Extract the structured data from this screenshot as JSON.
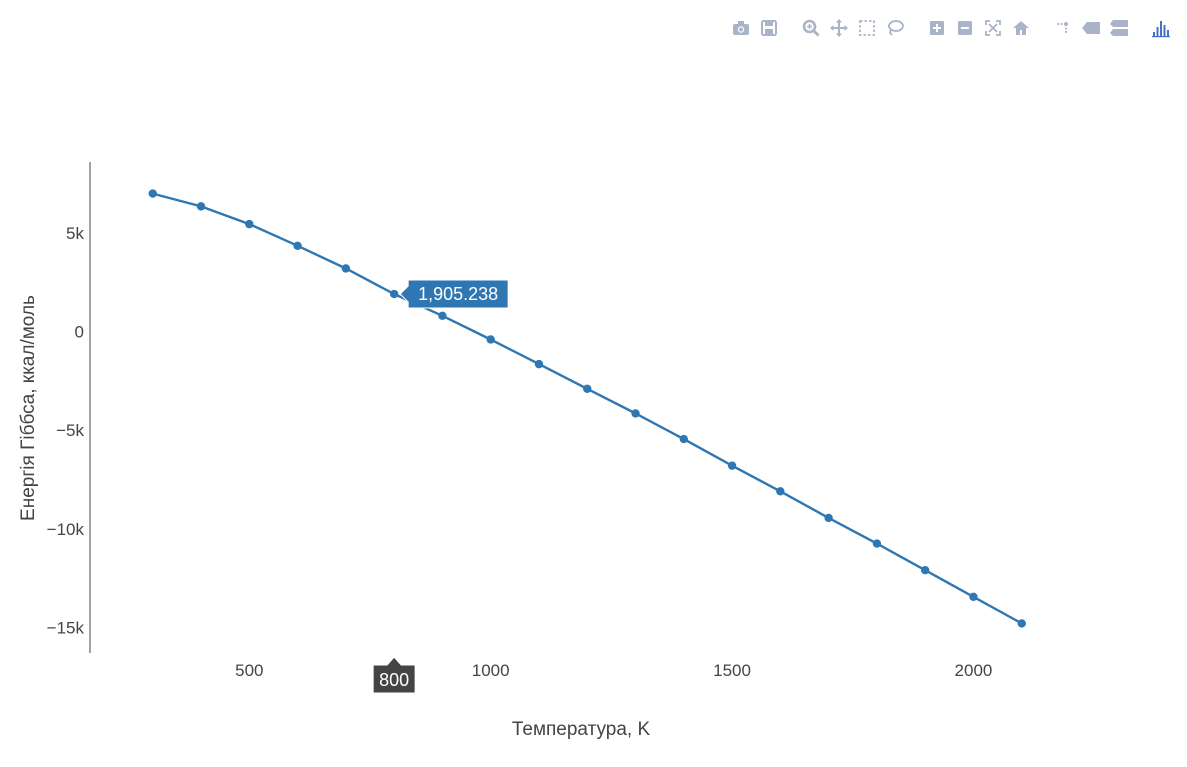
{
  "modebar": {
    "color": "#a9b4c8",
    "accent": "#4472c4",
    "groups": [
      [
        "camera-icon",
        "save-icon"
      ],
      [
        "zoom-icon",
        "pan-icon",
        "box-select-icon",
        "lasso-select-icon"
      ],
      [
        "zoom-in-icon",
        "zoom-out-icon",
        "autoscale-icon",
        "reset-axes-icon"
      ],
      [
        "spike-lines-icon",
        "hover-closest-icon",
        "hover-compare-icon"
      ],
      [
        "plotly-logo-icon"
      ]
    ]
  },
  "chart_data": {
    "type": "line",
    "mode": "lines+markers",
    "line_color": "#2e77b2",
    "xlabel": "Температура, K",
    "ylabel": "Енергія Гіббса, ккал/моль",
    "xlim": [
      170,
      2200
    ],
    "ylim": [
      -16300,
      8600
    ],
    "x_ticks": [
      500,
      1000,
      1500,
      2000
    ],
    "y_ticks": [
      5000,
      0,
      -5000,
      -10000,
      -15000
    ],
    "y_tick_labels": [
      "5k",
      "0",
      "−5k",
      "−10k",
      "−15k"
    ],
    "x_tick_labels": [
      "500",
      "1000",
      "1500",
      "2000"
    ],
    "grid": false,
    "series": [
      {
        "x": [
          300,
          400,
          500,
          600,
          700,
          800,
          900,
          1000,
          1100,
          1200,
          1300,
          1400,
          1500,
          1600,
          1700,
          1800,
          1900,
          2000,
          2100
        ],
        "y": [
          7000,
          6350,
          5450,
          4350,
          3200,
          1905.238,
          800,
          -400,
          -1650,
          -2900,
          -4150,
          -5450,
          -6800,
          -8100,
          -9450,
          -10750,
          -12100,
          -13450,
          -14800
        ]
      }
    ],
    "hover": {
      "point_index": 5,
      "y_label": "1,905.238",
      "x_label": "800",
      "box_color": "#2e77b2",
      "x_box_color": "#444444"
    }
  }
}
